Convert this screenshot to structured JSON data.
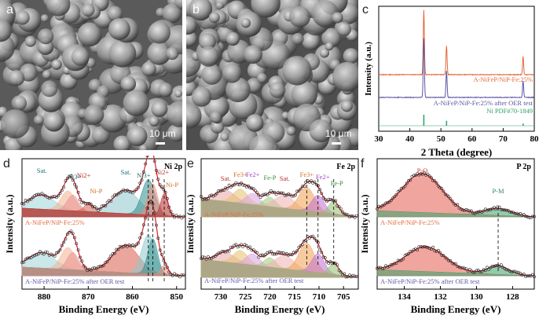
{
  "panels": {
    "a": {
      "letter": "a",
      "scale": "10 μm"
    },
    "b": {
      "letter": "b",
      "scale": "10 μm"
    },
    "c": {
      "letter": "c"
    },
    "d": {
      "letter": "d"
    },
    "e": {
      "letter": "e"
    },
    "f": {
      "letter": "f"
    }
  },
  "colors": {
    "orange": "#e2683a",
    "purple": "#5a55a5",
    "green": "#2e9e6a",
    "envelope_red": "#d2232a"
  },
  "chart_data": [
    {
      "id": "c",
      "type": "line",
      "title": "",
      "xlabel": "2 Theta (degree)",
      "ylabel": "Intensity (a.u.)",
      "xlim": [
        30,
        80
      ],
      "xticks": [
        30,
        40,
        50,
        60,
        70,
        80
      ],
      "series": [
        {
          "name": "A-NiFeP/NiP-Fe:25%",
          "color": "#e2683a",
          "peaks": [
            44.5,
            51.8,
            76.4
          ],
          "heights": [
            1.0,
            0.45,
            0.28
          ]
        },
        {
          "name": "A-NiFeP/NiP-Fe:25% after OER test",
          "color": "#5a55a5",
          "peaks": [
            44.5,
            51.8,
            76.4
          ],
          "heights": [
            1.0,
            0.45,
            0.28
          ]
        },
        {
          "name": "Ni PDF#70-1849",
          "color": "#2e9e6a",
          "peaks": [
            44.5,
            51.8,
            76.4
          ],
          "heights": [
            1.0,
            0.45,
            0.2
          ]
        }
      ]
    },
    {
      "id": "d",
      "type": "line",
      "tag": "Ni 2p",
      "xlabel": "Binding Energy (eV)",
      "ylabel": "Intensity (a.u.)",
      "xlim": [
        885,
        848
      ],
      "xticks": [
        880,
        870,
        860,
        850
      ],
      "annotations": [
        "Sat.",
        "Ni3+",
        "Ni2+",
        "Ni-P",
        "Sat.",
        "Ni3+",
        "Ni2+",
        "Ni-P"
      ],
      "dashed_lines": [
        856.4,
        855.4,
        852.8
      ],
      "series": [
        {
          "name": "A-NiFeP/NiP-Fe:25%",
          "components": [
            [
              880.5,
              3.0,
              0.18
            ],
            [
              874.6,
              1.6,
              0.25
            ],
            [
              873.5,
              1.3,
              0.2
            ],
            [
              870.0,
              1.0,
              0.1
            ],
            [
              861.5,
              3.0,
              0.3
            ],
            [
              856.4,
              1.5,
              0.45
            ],
            [
              855.4,
              1.1,
              0.4
            ],
            [
              852.8,
              0.8,
              0.28
            ]
          ]
        },
        {
          "name": "A-NiFeP/NiP-Fe:25% after OER test",
          "components": [
            [
              880.5,
              3.0,
              0.2
            ],
            [
              874.6,
              1.6,
              0.28
            ],
            [
              873.5,
              1.3,
              0.22
            ],
            [
              861.5,
              3.0,
              0.35
            ],
            [
              856.4,
              1.5,
              0.5
            ],
            [
              855.4,
              1.1,
              0.45
            ],
            [
              852.8,
              0.8,
              0.12
            ]
          ]
        }
      ]
    },
    {
      "id": "e",
      "type": "line",
      "tag": "Fe 2p",
      "xlabel": "Binding Energy (eV)",
      "ylabel": "Intensity (a.u.)",
      "xlim": [
        734,
        702
      ],
      "xticks": [
        730,
        725,
        720,
        715,
        710,
        705
      ],
      "annotations": [
        "Sat.",
        "Fe3+",
        "Fe2+",
        "Fe-P",
        "Sat.",
        "Fe3+",
        "Fe2+",
        "Fe-P"
      ],
      "dashed_lines": [
        712.5,
        710.2,
        707.0
      ],
      "series": [
        {
          "name": "A-NiFeP/NiP-Fe:25%",
          "components": [
            [
              729.0,
              2.0,
              0.12
            ],
            [
              726.0,
              1.5,
              0.15
            ],
            [
              723.5,
              1.4,
              0.12
            ],
            [
              720.0,
              1.2,
              0.1
            ],
            [
              717.0,
              2.0,
              0.14
            ],
            [
              712.5,
              1.6,
              0.25
            ],
            [
              710.2,
              1.3,
              0.18
            ],
            [
              707.0,
              1.0,
              0.14
            ]
          ]
        },
        {
          "name": "A-NiFeP/NiP-Fe:25% after OER test",
          "components": [
            [
              729.0,
              2.0,
              0.1
            ],
            [
              726.0,
              1.5,
              0.14
            ],
            [
              723.5,
              1.4,
              0.12
            ],
            [
              720.0,
              1.2,
              0.1
            ],
            [
              717.0,
              2.0,
              0.14
            ],
            [
              712.5,
              1.6,
              0.3
            ],
            [
              710.2,
              1.3,
              0.2
            ],
            [
              707.0,
              1.0,
              0.12
            ]
          ]
        }
      ]
    },
    {
      "id": "f",
      "type": "line",
      "tag": "P 2p",
      "xlabel": "Binding Energy (eV)",
      "ylabel": "Intensity (a.u.)",
      "xlim": [
        135.5,
        126.8
      ],
      "xticks": [
        134,
        132,
        130,
        128
      ],
      "annotations": [
        "P-O",
        "P-M"
      ],
      "dashed_lines": [
        128.8
      ],
      "series": [
        {
          "name": "A-NiFeP/NiP-Fe:25%",
          "components": [
            [
              133.0,
              1.1,
              0.55
            ],
            [
              128.8,
              0.7,
              0.1
            ]
          ]
        },
        {
          "name": "A-NiFeP/NiP-Fe:25% after OER test",
          "components": [
            [
              132.8,
              1.1,
              0.35
            ],
            [
              128.8,
              0.6,
              0.12
            ]
          ]
        }
      ]
    }
  ]
}
